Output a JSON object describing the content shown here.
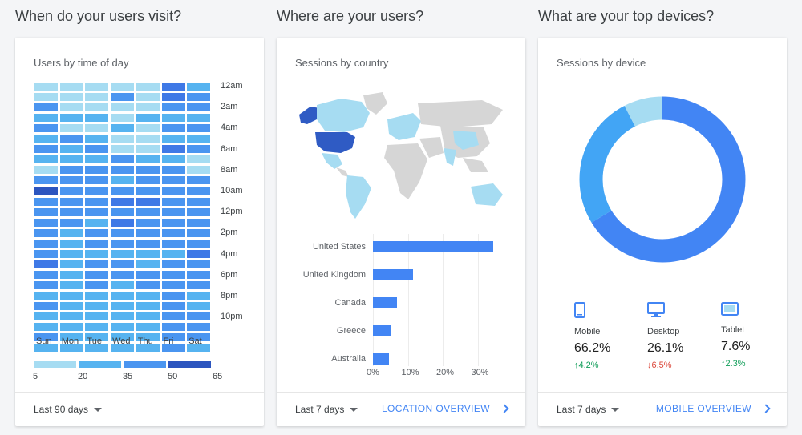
{
  "sections": {
    "visit_title": "When do your users visit?",
    "where_title": "Where are your users?",
    "devices_title": "What are your top devices?"
  },
  "colors": {
    "accent": "#4285f4",
    "heat_levels": [
      "#a6dcf2",
      "#56b3f0",
      "#4a95f0",
      "#3f79e6",
      "#2c55bf"
    ],
    "up": "#0f9d58",
    "down": "#db4437"
  },
  "card1": {
    "title": "Users by time of day",
    "days": [
      "Sun",
      "Mon",
      "Tue",
      "Wed",
      "Thu",
      "Fri",
      "Sat"
    ],
    "times": [
      "12am",
      "2am",
      "4am",
      "6am",
      "8am",
      "10am",
      "12pm",
      "2pm",
      "4pm",
      "6pm",
      "8pm",
      "10pm"
    ],
    "legend": [
      "5",
      "20",
      "35",
      "50",
      "65"
    ],
    "period": "Last 90 days",
    "heat_levels_by_row": [
      [
        0,
        0,
        0,
        0,
        0,
        3,
        1
      ],
      [
        0,
        0,
        0,
        2,
        0,
        3,
        2
      ],
      [
        2,
        0,
        0,
        0,
        0,
        2,
        2
      ],
      [
        1,
        1,
        1,
        0,
        1,
        1,
        1
      ],
      [
        2,
        0,
        0,
        1,
        0,
        2,
        2
      ],
      [
        1,
        2,
        1,
        0,
        0,
        1,
        1
      ],
      [
        2,
        1,
        2,
        0,
        0,
        3,
        2
      ],
      [
        1,
        1,
        1,
        2,
        1,
        1,
        0
      ],
      [
        0,
        2,
        2,
        2,
        2,
        2,
        0
      ],
      [
        2,
        2,
        2,
        1,
        2,
        2,
        2
      ],
      [
        4,
        2,
        2,
        2,
        2,
        2,
        2
      ],
      [
        2,
        2,
        2,
        3,
        3,
        2,
        2
      ],
      [
        2,
        2,
        2,
        2,
        2,
        2,
        2
      ],
      [
        2,
        2,
        1,
        3,
        2,
        2,
        2
      ],
      [
        2,
        1,
        2,
        2,
        2,
        2,
        2
      ],
      [
        2,
        1,
        2,
        2,
        2,
        2,
        2
      ],
      [
        2,
        1,
        1,
        1,
        1,
        1,
        3
      ],
      [
        3,
        1,
        2,
        2,
        1,
        2,
        2
      ],
      [
        2,
        1,
        2,
        2,
        2,
        2,
        2
      ],
      [
        2,
        1,
        2,
        1,
        2,
        2,
        2
      ],
      [
        1,
        1,
        1,
        1,
        1,
        2,
        1
      ],
      [
        2,
        1,
        1,
        1,
        1,
        2,
        1
      ],
      [
        1,
        1,
        1,
        1,
        1,
        2,
        2
      ],
      [
        1,
        1,
        1,
        1,
        1,
        2,
        2
      ],
      [
        2,
        1,
        1,
        1,
        1,
        2,
        2
      ],
      [
        1,
        1,
        1,
        1,
        1,
        2,
        1
      ]
    ]
  },
  "card2": {
    "title": "Sessions by country",
    "period": "Last 7 days",
    "overview_label": "LOCATION OVERVIEW",
    "ticks": [
      "0%",
      "10%",
      "20%",
      "30%"
    ],
    "countries": [
      {
        "name": "United States",
        "value": 34.5
      },
      {
        "name": "United Kingdom",
        "value": 11.5
      },
      {
        "name": "Canada",
        "value": 7
      },
      {
        "name": "Greece",
        "value": 5
      },
      {
        "name": "Australia",
        "value": 4.7
      }
    ]
  },
  "card3": {
    "title": "Sessions by device",
    "period": "Last 7 days",
    "overview_label": "MOBILE OVERVIEW",
    "devices": [
      {
        "name": "Mobile",
        "pct": "66.2%",
        "value": 66.2,
        "change": "4.2%",
        "direction": "up",
        "color": "#4285f4",
        "icon": "phone-icon"
      },
      {
        "name": "Desktop",
        "pct": "26.1%",
        "value": 26.1,
        "change": "6.5%",
        "direction": "down",
        "color": "#42a5f5",
        "icon": "desktop-icon"
      },
      {
        "name": "Tablet",
        "pct": "7.6%",
        "value": 7.6,
        "change": "2.3%",
        "direction": "up",
        "color": "#a6dcf2",
        "icon": "tablet-icon"
      }
    ]
  },
  "arrows": {
    "up": "🠕",
    "down": "🠗"
  }
}
